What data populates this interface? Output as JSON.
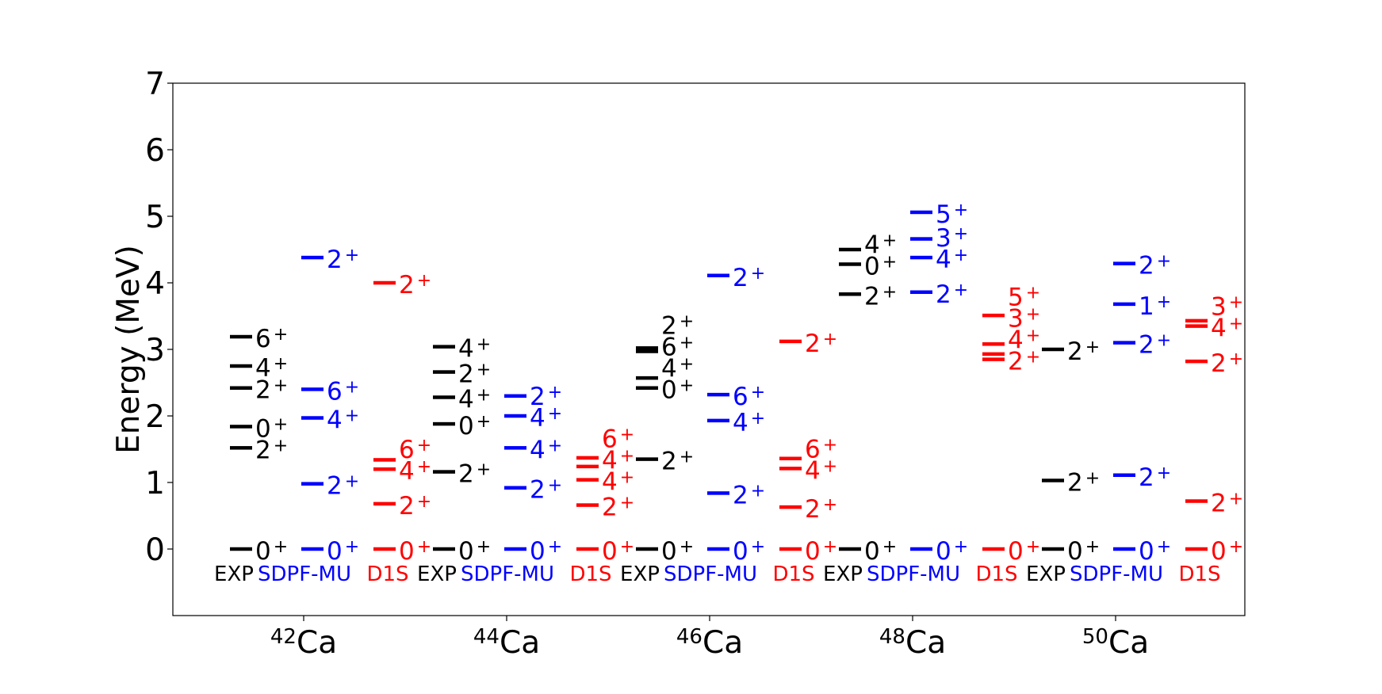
{
  "chart_data": {
    "type": "level-scheme",
    "ylabel": "Energy (MeV)",
    "ylim": [
      -1,
      7
    ],
    "yticks": [
      0,
      1,
      2,
      3,
      4,
      5,
      6,
      7
    ],
    "grid": false,
    "colors": {
      "EXP": "#000000",
      "SDPF-MU": "#0000ff",
      "D1S": "#ff0000"
    },
    "nuclei": [
      {
        "mass": "42",
        "symbol": "Ca",
        "columns": [
          {
            "source": "EXP",
            "label": "EXP",
            "levels": [
              {
                "e": 0,
                "j": "0",
                "p": "+"
              },
              {
                "e": 1.52,
                "j": "2",
                "p": "+"
              },
              {
                "e": 1.84,
                "j": "0",
                "p": "+"
              },
              {
                "e": 2.42,
                "j": "2",
                "p": "+"
              },
              {
                "e": 2.75,
                "j": "4",
                "p": "+"
              },
              {
                "e": 3.19,
                "j": "6",
                "p": "+"
              }
            ]
          },
          {
            "source": "SDPF-MU",
            "label": "SDPF-MU",
            "levels": [
              {
                "e": 0,
                "j": "0",
                "p": "+"
              },
              {
                "e": 0.98,
                "j": "2",
                "p": "+"
              },
              {
                "e": 1.97,
                "j": "4",
                "p": "+"
              },
              {
                "e": 2.4,
                "j": "6",
                "p": "+"
              },
              {
                "e": 4.38,
                "j": "2",
                "p": "+"
              }
            ]
          },
          {
            "source": "D1S",
            "label": "D1S",
            "levels": [
              {
                "e": 0,
                "j": "0",
                "p": "+"
              },
              {
                "e": 0.68,
                "j": "2",
                "p": "+"
              },
              {
                "e": 1.2,
                "j": "4",
                "p": "+"
              },
              {
                "e": 1.34,
                "j": "6",
                "p": "+"
              },
              {
                "e": 4.0,
                "j": "2",
                "p": "+"
              }
            ]
          }
        ]
      },
      {
        "mass": "44",
        "symbol": "Ca",
        "columns": [
          {
            "source": "EXP",
            "label": "EXP",
            "levels": [
              {
                "e": 0,
                "j": "0",
                "p": "+"
              },
              {
                "e": 1.16,
                "j": "2",
                "p": "+"
              },
              {
                "e": 1.88,
                "j": "0",
                "p": "+"
              },
              {
                "e": 2.28,
                "j": "4",
                "p": "+"
              },
              {
                "e": 2.66,
                "j": "2",
                "p": "+"
              },
              {
                "e": 3.04,
                "j": "4",
                "p": "+"
              }
            ]
          },
          {
            "source": "SDPF-MU",
            "label": "SDPF-MU",
            "levels": [
              {
                "e": 0,
                "j": "0",
                "p": "+"
              },
              {
                "e": 0.92,
                "j": "2",
                "p": "+"
              },
              {
                "e": 1.52,
                "j": "4",
                "p": "+"
              },
              {
                "e": 2.0,
                "j": "4",
                "p": "+"
              },
              {
                "e": 2.3,
                "j": "2",
                "p": "+"
              }
            ]
          },
          {
            "source": "D1S",
            "label": "D1S",
            "levels": [
              {
                "e": 0,
                "j": "0",
                "p": "+"
              },
              {
                "e": 0.66,
                "j": "2",
                "p": "+"
              },
              {
                "e": 1.04,
                "j": "4",
                "p": "+"
              },
              {
                "e": 1.24,
                "j": "4",
                "p": "+"
              },
              {
                "e": 1.37,
                "j": "6",
                "p": "+"
              }
            ]
          }
        ]
      },
      {
        "mass": "46",
        "symbol": "Ca",
        "columns": [
          {
            "source": "EXP",
            "label": "EXP",
            "levels": [
              {
                "e": 0,
                "j": "0",
                "p": "+"
              },
              {
                "e": 1.35,
                "j": "2",
                "p": "+"
              },
              {
                "e": 2.42,
                "j": "0",
                "p": "+"
              },
              {
                "e": 2.57,
                "j": "4",
                "p": "+"
              },
              {
                "e": 2.97,
                "j": "6",
                "p": "+"
              },
              {
                "e": 3.02,
                "j": "2",
                "p": "+"
              }
            ]
          },
          {
            "source": "SDPF-MU",
            "label": "SDPF-MU",
            "levels": [
              {
                "e": 0,
                "j": "0",
                "p": "+"
              },
              {
                "e": 0.84,
                "j": "2",
                "p": "+"
              },
              {
                "e": 1.93,
                "j": "4",
                "p": "+"
              },
              {
                "e": 2.32,
                "j": "6",
                "p": "+"
              },
              {
                "e": 4.11,
                "j": "2",
                "p": "+"
              }
            ]
          },
          {
            "source": "D1S",
            "label": "D1S",
            "levels": [
              {
                "e": 0,
                "j": "0",
                "p": "+"
              },
              {
                "e": 0.63,
                "j": "2",
                "p": "+"
              },
              {
                "e": 1.21,
                "j": "4",
                "p": "+"
              },
              {
                "e": 1.36,
                "j": "6",
                "p": "+"
              },
              {
                "e": 3.12,
                "j": "2",
                "p": "+"
              }
            ]
          }
        ]
      },
      {
        "mass": "48",
        "symbol": "Ca",
        "columns": [
          {
            "source": "EXP",
            "label": "EXP",
            "levels": [
              {
                "e": 0,
                "j": "0",
                "p": "+"
              },
              {
                "e": 3.83,
                "j": "2",
                "p": "+"
              },
              {
                "e": 4.28,
                "j": "0",
                "p": "+"
              },
              {
                "e": 4.5,
                "j": "4",
                "p": "+"
              }
            ]
          },
          {
            "source": "SDPF-MU",
            "label": "SDPF-MU",
            "levels": [
              {
                "e": 0,
                "j": "0",
                "p": "+"
              },
              {
                "e": 3.86,
                "j": "2",
                "p": "+"
              },
              {
                "e": 4.38,
                "j": "4",
                "p": "+"
              },
              {
                "e": 4.66,
                "j": "3",
                "p": "+"
              },
              {
                "e": 5.06,
                "j": "5",
                "p": "+"
              }
            ]
          },
          {
            "source": "D1S",
            "label": "D1S",
            "levels": [
              {
                "e": 0,
                "j": "0",
                "p": "+"
              },
              {
                "e": 2.85,
                "j": "2",
                "p": "+"
              },
              {
                "e": 2.93,
                "j": "4",
                "p": "+"
              },
              {
                "e": 3.08,
                "j": "3",
                "p": "+"
              },
              {
                "e": 3.51,
                "j": "5",
                "p": "+"
              }
            ]
          }
        ]
      },
      {
        "mass": "50",
        "symbol": "Ca",
        "columns": [
          {
            "source": "EXP",
            "label": "EXP",
            "levels": [
              {
                "e": 0,
                "j": "0",
                "p": "+"
              },
              {
                "e": 1.03,
                "j": "2",
                "p": "+"
              },
              {
                "e": 3.0,
                "j": "2",
                "p": "+"
              }
            ]
          },
          {
            "source": "SDPF-MU",
            "label": "SDPF-MU",
            "levels": [
              {
                "e": 0,
                "j": "0",
                "p": "+"
              },
              {
                "e": 1.11,
                "j": "2",
                "p": "+"
              },
              {
                "e": 3.1,
                "j": "2",
                "p": "+"
              },
              {
                "e": 3.68,
                "j": "1",
                "p": "+"
              },
              {
                "e": 4.29,
                "j": "2",
                "p": "+"
              }
            ]
          },
          {
            "source": "D1S",
            "label": "D1S",
            "levels": [
              {
                "e": 0,
                "j": "0",
                "p": "+"
              },
              {
                "e": 0.72,
                "j": "2",
                "p": "+"
              },
              {
                "e": 2.82,
                "j": "2",
                "p": "+"
              },
              {
                "e": 3.35,
                "j": "4",
                "p": "+"
              },
              {
                "e": 3.43,
                "j": "3",
                "p": "+"
              }
            ]
          }
        ]
      }
    ]
  }
}
